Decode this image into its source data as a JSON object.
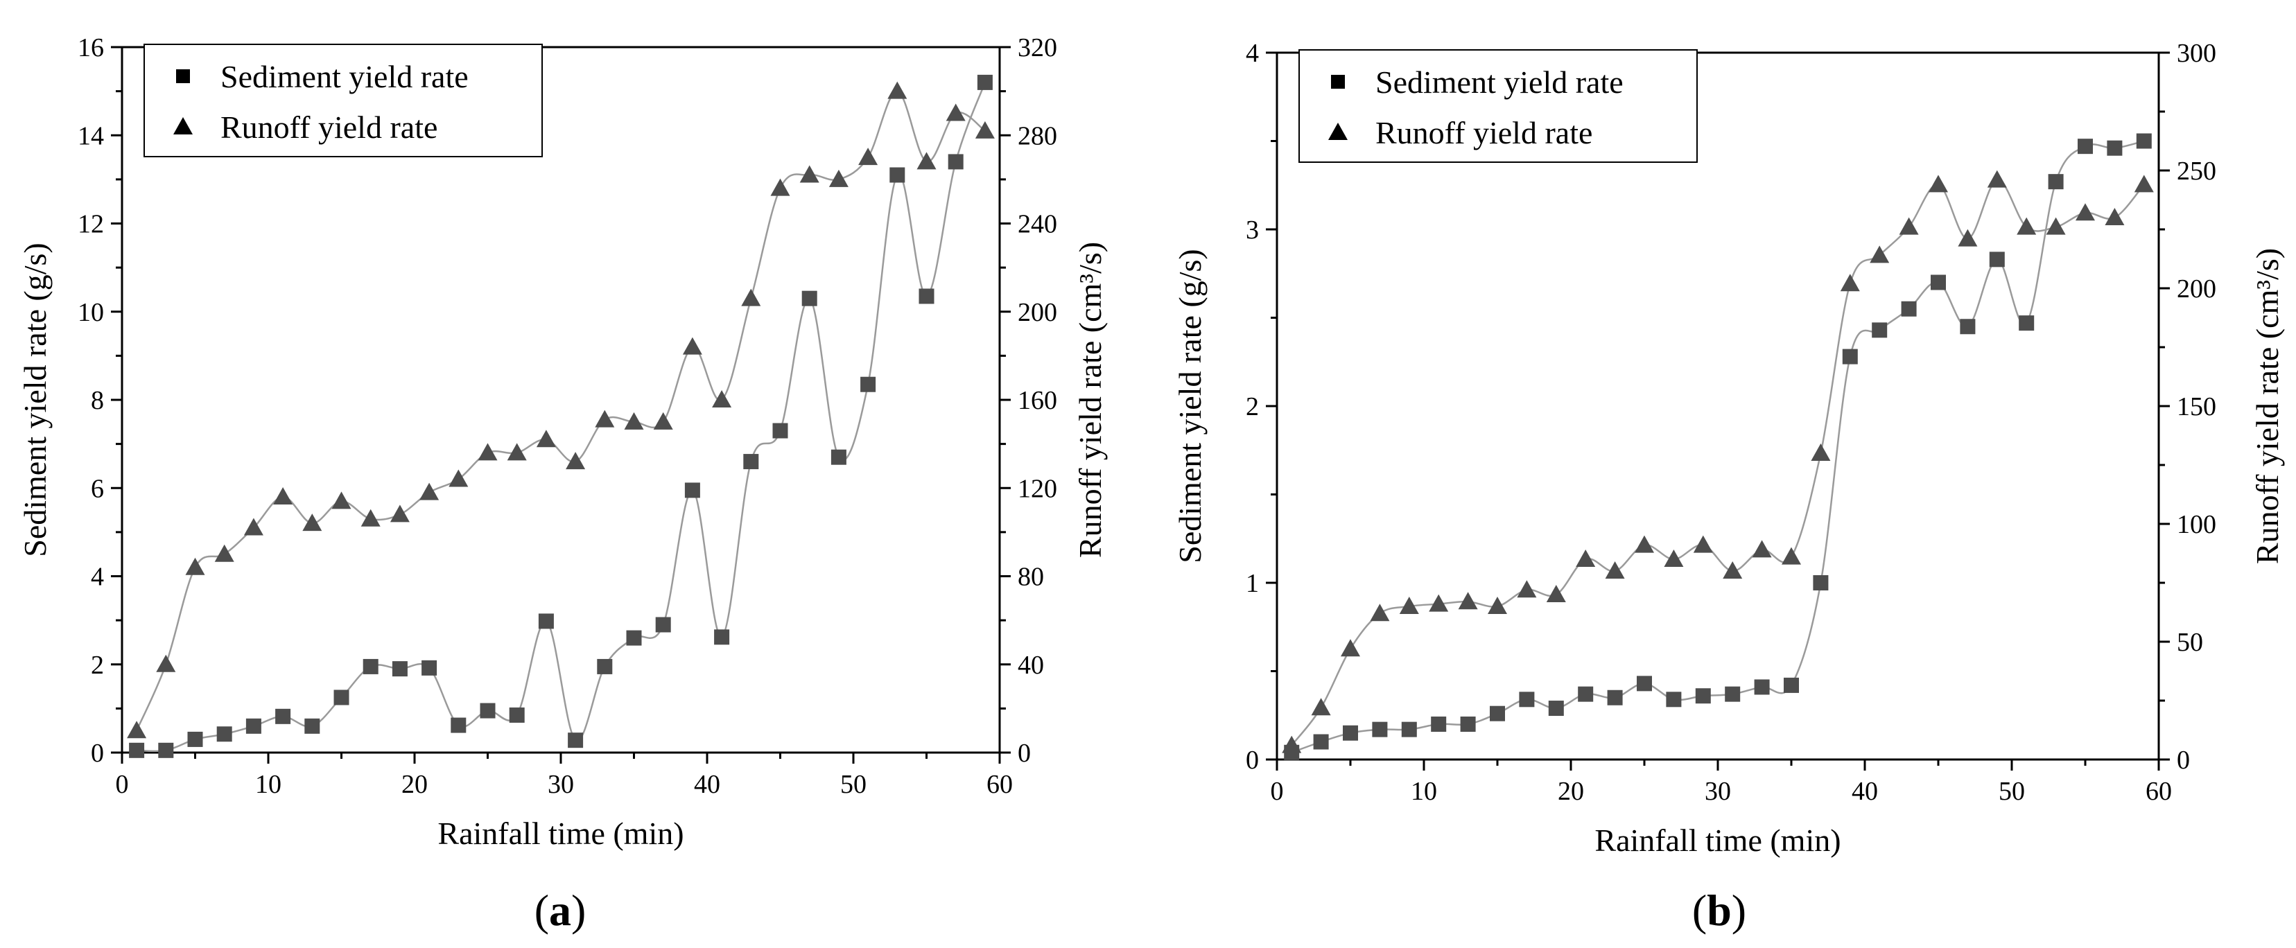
{
  "chart_data": [
    {
      "type": "line",
      "panel_label": {
        "open": "(",
        "letter": "a",
        "close": ")"
      },
      "xlabel": "Rainfall time (min)",
      "ylabel_left": "Sediment yield rate  (g/s)",
      "ylabel_right": "Runoff yield rate  (cm³/s)",
      "xlim": [
        0,
        60
      ],
      "ylim_left": [
        0,
        16
      ],
      "ylim_right": [
        0,
        320
      ],
      "x_ticks": [
        0,
        10,
        20,
        30,
        40,
        50,
        60
      ],
      "yleft_ticks": [
        0,
        2,
        4,
        6,
        8,
        10,
        12,
        14,
        16
      ],
      "yright_ticks": [
        0,
        40,
        80,
        120,
        160,
        200,
        240,
        280,
        320
      ],
      "legend_position": "top-left",
      "series": [
        {
          "name": "Sediment yield rate",
          "marker": "square",
          "axis": "left",
          "x": [
            1,
            3,
            5,
            7,
            9,
            11,
            13,
            15,
            17,
            19,
            21,
            23,
            25,
            27,
            29,
            31,
            33,
            35,
            37,
            39,
            41,
            43,
            45,
            47,
            49,
            51,
            53,
            55,
            57,
            59
          ],
          "y": [
            0.05,
            0.05,
            0.3,
            0.42,
            0.6,
            0.82,
            0.6,
            1.25,
            1.95,
            1.9,
            1.92,
            0.62,
            0.95,
            0.85,
            2.98,
            0.28,
            1.95,
            2.6,
            2.9,
            5.95,
            2.62,
            6.6,
            7.3,
            10.3,
            6.7,
            8.35,
            13.1,
            10.35,
            13.4,
            15.2
          ]
        },
        {
          "name": "Runoff yield rate",
          "marker": "triangle",
          "axis": "right",
          "x": [
            1,
            3,
            5,
            7,
            9,
            11,
            13,
            15,
            17,
            19,
            21,
            23,
            25,
            27,
            29,
            31,
            33,
            35,
            37,
            39,
            41,
            43,
            45,
            47,
            49,
            51,
            53,
            55,
            57,
            59
          ],
          "y": [
            10,
            40,
            84,
            90,
            102,
            116,
            104,
            114,
            106,
            108,
            118,
            124,
            136,
            136,
            142,
            132,
            151,
            150,
            150,
            184,
            160,
            206,
            256,
            262,
            260,
            270,
            300,
            268,
            290,
            282
          ]
        }
      ]
    },
    {
      "type": "line",
      "panel_label": {
        "open": "(",
        "letter": "b",
        "close": ")"
      },
      "xlabel": "Rainfall time (min)",
      "ylabel_left": "Sediment yield rate  (g/s)",
      "ylabel_right": "Runoff yield rate  (cm³/s)",
      "xlim": [
        0,
        60
      ],
      "ylim_left": [
        0,
        4
      ],
      "ylim_right": [
        0,
        300
      ],
      "x_ticks": [
        0,
        10,
        20,
        30,
        40,
        50,
        60
      ],
      "yleft_ticks": [
        0,
        1,
        2,
        3,
        4
      ],
      "yright_ticks": [
        0,
        50,
        100,
        150,
        200,
        250,
        300
      ],
      "legend_position": "top-left",
      "series": [
        {
          "name": "Sediment yield rate",
          "marker": "square",
          "axis": "left",
          "x": [
            1,
            3,
            5,
            7,
            9,
            11,
            13,
            15,
            17,
            19,
            21,
            23,
            25,
            27,
            29,
            31,
            33,
            35,
            37,
            39,
            41,
            43,
            45,
            47,
            49,
            51,
            53,
            55,
            57,
            59
          ],
          "y": [
            0.04,
            0.1,
            0.15,
            0.17,
            0.17,
            0.2,
            0.2,
            0.26,
            0.34,
            0.29,
            0.37,
            0.35,
            0.43,
            0.34,
            0.36,
            0.37,
            0.41,
            0.42,
            1.0,
            2.28,
            2.43,
            2.55,
            2.7,
            2.45,
            2.83,
            2.47,
            3.27,
            3.47,
            3.46,
            3.5
          ]
        },
        {
          "name": "Runoff yield rate",
          "marker": "triangle",
          "axis": "right",
          "x": [
            1,
            3,
            5,
            7,
            9,
            11,
            13,
            15,
            17,
            19,
            21,
            23,
            25,
            27,
            29,
            31,
            33,
            35,
            37,
            39,
            41,
            43,
            45,
            47,
            49,
            51,
            53,
            55,
            57,
            59
          ],
          "y": [
            6,
            22,
            47,
            62,
            65,
            66,
            67,
            65,
            72,
            70,
            85,
            80,
            91,
            85,
            91,
            80,
            89,
            86,
            130,
            202,
            214,
            226,
            244,
            221,
            246,
            226,
            226,
            232,
            230,
            244
          ]
        }
      ]
    }
  ]
}
